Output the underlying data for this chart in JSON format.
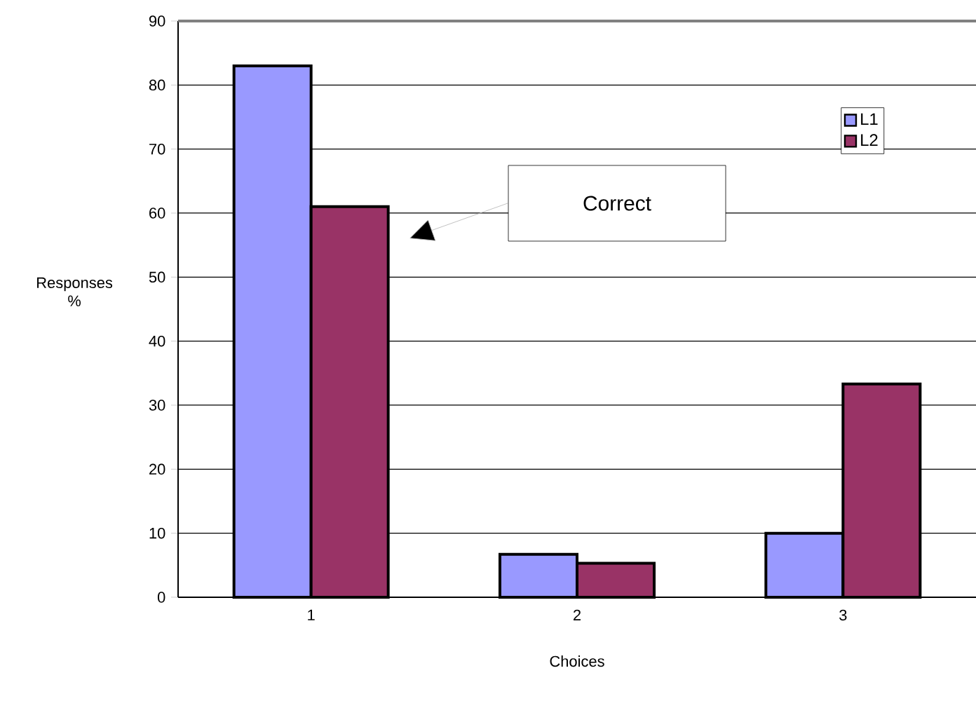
{
  "chart_data": {
    "type": "bar",
    "xlabel": "Choices",
    "ylabel": "Responses %",
    "categories": [
      "1",
      "2",
      "3"
    ],
    "series": [
      {
        "name": "L1",
        "color": "#9999ff",
        "values": [
          83,
          6.7,
          10
        ]
      },
      {
        "name": "L2",
        "color": "#993366",
        "values": [
          61,
          5.3,
          33.3
        ]
      }
    ],
    "ylim": [
      0,
      90
    ],
    "yticks": [
      0,
      10,
      20,
      30,
      40,
      50,
      60,
      70,
      80,
      90
    ],
    "grid": "y",
    "legend": "top right",
    "annotations": [
      "Correct"
    ]
  }
}
